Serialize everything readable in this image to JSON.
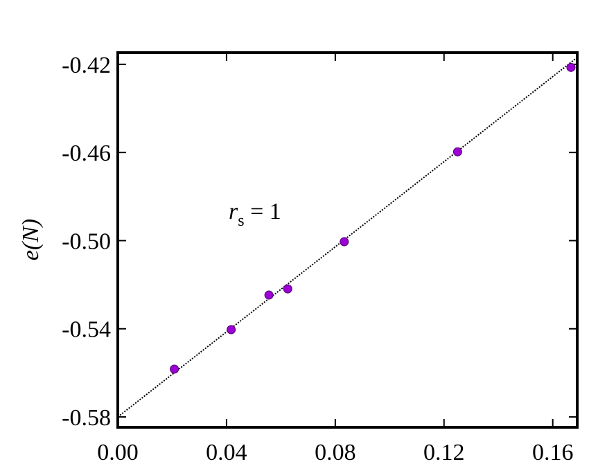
{
  "chart_data": {
    "type": "scatter",
    "y_label": "e(N)",
    "annotation": {
      "main": "r",
      "subscript": "s",
      "tail": " = 1"
    },
    "series": [
      {
        "color": "#9b00d4",
        "x": [
          0.0208,
          0.0417,
          0.0556,
          0.0625,
          0.0833,
          0.125,
          0.1667
        ],
        "values": [
          -0.5583,
          -0.5404,
          -0.5247,
          -0.5219,
          -0.5005,
          -0.4597,
          -0.4214
        ]
      },
      {
        "type": "line",
        "color": "#000000",
        "x": [
          0,
          0.169
        ],
        "values": [
          -0.58,
          -0.4169
        ]
      }
    ],
    "xlim": [
      0,
      0.169
    ],
    "ylim": [
      -0.5847,
      -0.4147
    ],
    "xticks": [
      {
        "value": 0,
        "label": "0.00"
      },
      0.04,
      0.08,
      0.12,
      0.16
    ],
    "yticks": [
      -0.58,
      -0.54,
      {
        "value": -0.5,
        "label": "-0.50"
      },
      -0.46,
      -0.42
    ]
  }
}
